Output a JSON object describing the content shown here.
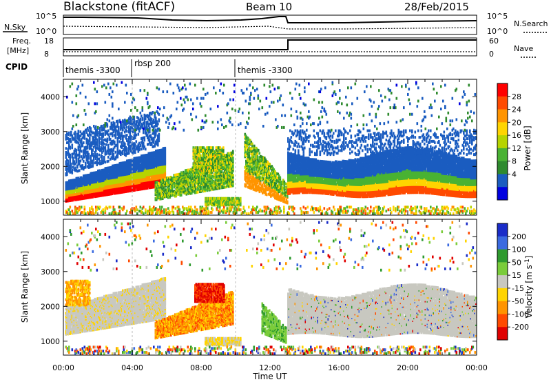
{
  "header": {
    "title": "Blackstone (fitACF)",
    "beam": "Beam 10",
    "date": "28/Feb/2015"
  },
  "top_panels": {
    "nsky_label": "N.Sky",
    "nsky_ticks": [
      "10^5",
      "10^0"
    ],
    "nsearch_ticks": [
      "10^5",
      "10^0"
    ],
    "nsearch_label": "N.Search",
    "freq_label_1": "Freq.",
    "freq_label_2": "[MHz]",
    "freq_ticks": [
      "18",
      "8"
    ],
    "nave_ticks": [
      "60",
      "0"
    ],
    "nave_label": "Nave",
    "cpid_label": "CPID",
    "cpid_segments": [
      "themis -3300",
      "rbsp 200",
      "themis -3300"
    ]
  },
  "chart_data": [
    {
      "type": "heatmap",
      "panel": "power",
      "ylabel": "Slant Range [km]",
      "yticks": [
        "1000",
        "2000",
        "3000",
        "4000"
      ],
      "ylim": [
        600,
        4500
      ],
      "x": [
        "00:00",
        "04:00",
        "08:00",
        "12:00",
        "16:00",
        "20:00",
        "00:00"
      ],
      "colorbar": {
        "label": "Power [dB]",
        "ticks": [
          "28",
          "24",
          "20",
          "16",
          "12",
          "8",
          "4"
        ],
        "colors": [
          "#ff0000",
          "#ff4a00",
          "#ff9400",
          "#ffd400",
          "#b6d400",
          "#49b233",
          "#2e8a2e",
          "#1a5cc0",
          "#0000e0"
        ]
      }
    },
    {
      "type": "heatmap",
      "panel": "velocity",
      "ylabel": "Slant Range [km]",
      "yticks": [
        "1000",
        "2000",
        "3000",
        "4000"
      ],
      "ylim": [
        600,
        4500
      ],
      "x": [
        "00:00",
        "04:00",
        "08:00",
        "12:00",
        "16:00",
        "20:00",
        "00:00"
      ],
      "xlabel": "Time UT",
      "colorbar": {
        "label": "Velocity [m s^-1]",
        "ticks": [
          "200",
          "100",
          "50",
          "15",
          "-15",
          "-50",
          "-100",
          "-200"
        ],
        "colors": [
          "#1a2cc8",
          "#3a6ae0",
          "#2e9a2e",
          "#7acc3a",
          "#c8c8c0",
          "#ffd400",
          "#ff9400",
          "#ff4a00",
          "#e00000"
        ]
      }
    }
  ]
}
